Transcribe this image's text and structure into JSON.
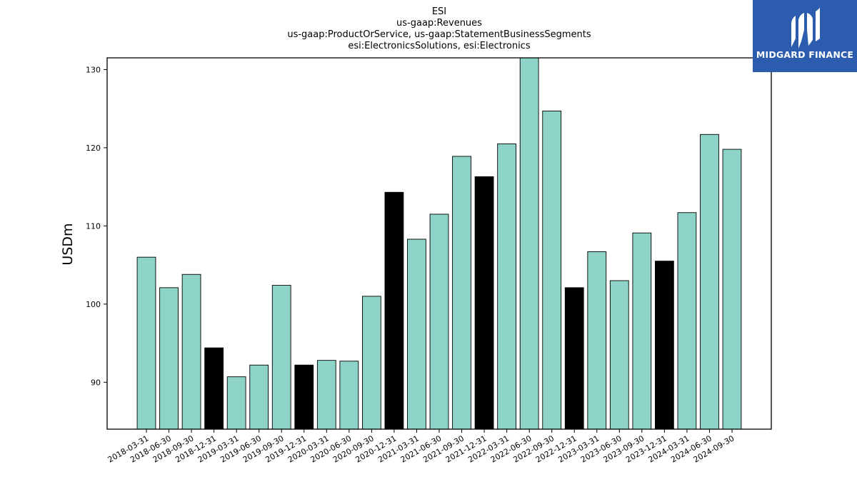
{
  "brand": {
    "name": "MIDGARD FINANCE",
    "logo_icon": "midgard-m-icon",
    "color": "#2b5cad"
  },
  "chart_data": {
    "type": "bar",
    "title_lines": [
      "ESI",
      "us-gaap:Revenues",
      "us-gaap:ProductOrService, us-gaap:StatementBusinessSegments",
      "esi:ElectronicsSolutions, esi:Electronics"
    ],
    "xlabel": "",
    "ylabel": "USDm",
    "ylim": [
      84,
      131.5
    ],
    "yticks": [
      90,
      100,
      110,
      120,
      130
    ],
    "grid": false,
    "colors": {
      "quarter": "#8dd3c7",
      "year_end": "#000000",
      "edge": "#000000"
    },
    "categories": [
      "2018-03-31",
      "2018-06-30",
      "2018-09-30",
      "2018-12-31",
      "2019-03-31",
      "2019-06-30",
      "2019-09-30",
      "2019-12-31",
      "2020-03-31",
      "2020-06-30",
      "2020-09-30",
      "2020-12-31",
      "2021-03-31",
      "2021-06-30",
      "2021-09-30",
      "2021-12-31",
      "2022-03-31",
      "2022-06-30",
      "2022-09-30",
      "2022-12-31",
      "2023-03-31",
      "2023-06-30",
      "2023-09-30",
      "2023-12-31",
      "2024-03-31",
      "2024-06-30",
      "2024-09-30"
    ],
    "values": [
      106.0,
      102.1,
      103.8,
      94.4,
      90.7,
      92.2,
      102.4,
      92.2,
      92.8,
      92.7,
      101.0,
      114.3,
      108.3,
      111.5,
      118.9,
      116.3,
      120.5,
      131.5,
      124.7,
      102.1,
      106.7,
      103.0,
      109.1,
      105.5,
      111.7,
      121.7,
      119.8
    ],
    "year_end_flags": [
      false,
      false,
      false,
      true,
      false,
      false,
      false,
      true,
      false,
      false,
      false,
      true,
      false,
      false,
      false,
      true,
      false,
      false,
      false,
      true,
      false,
      false,
      false,
      true,
      false,
      false,
      false
    ]
  }
}
